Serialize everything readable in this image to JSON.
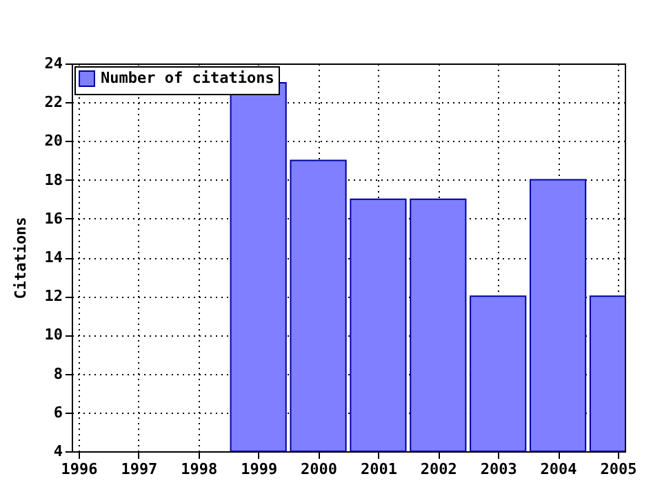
{
  "chart_data": {
    "type": "bar",
    "ylabel": "Citations",
    "x": [
      1999,
      2000,
      2001,
      2002,
      2003,
      2004,
      2005
    ],
    "series": [
      {
        "name": "Number of citations",
        "color": "#7f7fff",
        "values": [
          23,
          19,
          17,
          17,
          12,
          18,
          12
        ]
      }
    ],
    "xlim": [
      1996,
      2005
    ],
    "xticks": [
      1996,
      1997,
      1998,
      1999,
      2000,
      2001,
      2002,
      2003,
      2004,
      2005
    ],
    "ylim": [
      4,
      24
    ],
    "yticks": [
      4,
      6,
      8,
      10,
      12,
      14,
      16,
      18,
      20,
      22,
      24
    ],
    "grid": true,
    "legend": "top left"
  }
}
